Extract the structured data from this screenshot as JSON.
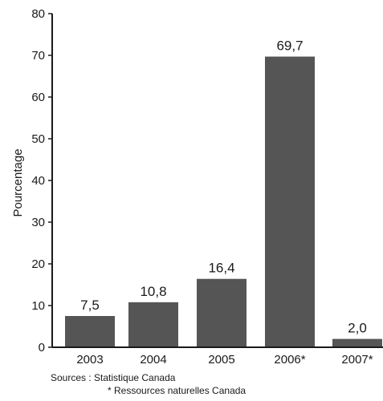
{
  "chart_data": {
    "type": "bar",
    "categories": [
      "2003",
      "2004",
      "2005",
      "2006*",
      "2007*"
    ],
    "values": [
      7.5,
      10.8,
      16.4,
      69.7,
      2.0
    ],
    "data_labels": [
      "7,5",
      "10,8",
      "16,4",
      "69,7",
      "2,0"
    ],
    "ylabel": "Pourcentage",
    "xlabel": "",
    "ylim": [
      0,
      80
    ],
    "yticks": [
      0,
      10,
      20,
      30,
      40,
      50,
      60,
      70,
      80
    ],
    "grid": false,
    "bar_color": "#555555"
  },
  "sources": {
    "line1": "Sources : Statistique Canada",
    "line2": "* Ressources naturelles Canada"
  }
}
